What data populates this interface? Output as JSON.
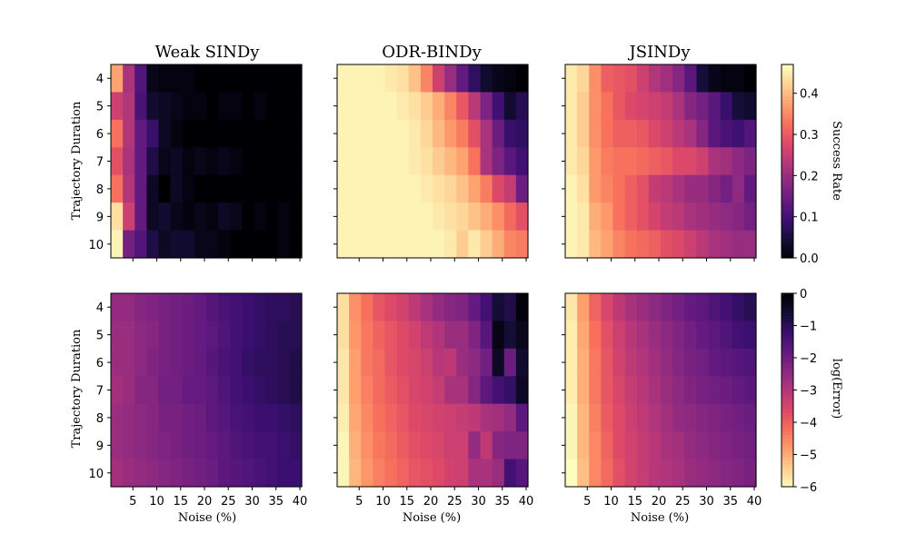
{
  "chart_data": {
    "type": "heatmap",
    "x_ticks": [
      5,
      10,
      15,
      20,
      25,
      30,
      35,
      40
    ],
    "y_ticks": [
      4,
      5,
      6,
      7,
      8,
      9,
      10
    ],
    "xlabel": "Noise (%)",
    "ylabel": "Trajectory Duration",
    "panel_titles": [
      "Weak SINDy",
      "ODR-BINDy",
      "JSINDy"
    ],
    "colorbars": [
      {
        "label": "Success Rate",
        "range": [
          0,
          0.47
        ],
        "ticks": [
          "0.0",
          "0.1",
          "0.2",
          "0.3",
          "0.4"
        ],
        "tick_values": [
          0,
          0.1,
          0.2,
          0.3,
          0.4
        ],
        "colormap": "magma"
      },
      {
        "label": "log(Error)",
        "range": [
          -6,
          0
        ],
        "ticks": [
          "−6",
          "−5",
          "−4",
          "−3",
          "−2",
          "−1",
          "0"
        ],
        "tick_values": [
          -6,
          -5,
          -4,
          -3,
          -2,
          -1,
          0
        ],
        "colormap": "magma_r"
      }
    ],
    "panels": [
      {
        "method": "Weak SINDy",
        "metric": "Success Rate",
        "values": [
          [
            0.38,
            0.22,
            0.12,
            0.02,
            0.01,
            0.01,
            0.01,
            0.0,
            0.0,
            0.0,
            0.0,
            0.0,
            0.0,
            0.0,
            0.0,
            0.0
          ],
          [
            0.26,
            0.23,
            0.11,
            0.04,
            0.03,
            0.02,
            0.01,
            0.01,
            0.0,
            0.01,
            0.01,
            0.0,
            0.01,
            0.0,
            0.0,
            0.0
          ],
          [
            0.33,
            0.23,
            0.14,
            0.09,
            0.03,
            0.01,
            0.0,
            0.0,
            0.0,
            0.0,
            0.0,
            0.0,
            0.0,
            0.0,
            0.0,
            0.0
          ],
          [
            0.29,
            0.22,
            0.14,
            0.06,
            0.02,
            0.03,
            0.01,
            0.02,
            0.01,
            0.02,
            0.01,
            0.0,
            0.0,
            0.0,
            0.0,
            0.0
          ],
          [
            0.33,
            0.23,
            0.14,
            0.03,
            0.0,
            0.03,
            0.01,
            0.0,
            0.0,
            0.0,
            0.0,
            0.0,
            0.0,
            0.0,
            0.0,
            0.0
          ],
          [
            0.44,
            0.26,
            0.14,
            0.03,
            0.04,
            0.02,
            0.01,
            0.02,
            0.01,
            0.03,
            0.02,
            0.0,
            0.01,
            0.0,
            0.01,
            0.0
          ],
          [
            0.46,
            0.16,
            0.12,
            0.06,
            0.03,
            0.04,
            0.04,
            0.02,
            0.02,
            0.01,
            0.0,
            0.0,
            0.0,
            0.0,
            0.01,
            0.0
          ]
        ]
      },
      {
        "method": "ODR-BINDy",
        "metric": "Success Rate",
        "values": [
          [
            0.46,
            0.46,
            0.46,
            0.46,
            0.45,
            0.44,
            0.41,
            0.35,
            0.26,
            0.2,
            0.14,
            0.08,
            0.04,
            0.02,
            0.01,
            0.0
          ],
          [
            0.46,
            0.46,
            0.46,
            0.46,
            0.46,
            0.45,
            0.44,
            0.42,
            0.39,
            0.35,
            0.3,
            0.24,
            0.17,
            0.1,
            0.04,
            0.07
          ],
          [
            0.46,
            0.46,
            0.46,
            0.46,
            0.46,
            0.46,
            0.45,
            0.43,
            0.4,
            0.37,
            0.34,
            0.29,
            0.22,
            0.15,
            0.09,
            0.08
          ],
          [
            0.46,
            0.46,
            0.46,
            0.46,
            0.46,
            0.46,
            0.45,
            0.44,
            0.42,
            0.4,
            0.38,
            0.33,
            0.22,
            0.17,
            0.13,
            0.1
          ],
          [
            0.46,
            0.46,
            0.46,
            0.46,
            0.46,
            0.46,
            0.46,
            0.45,
            0.44,
            0.43,
            0.41,
            0.38,
            0.34,
            0.28,
            0.25,
            0.15
          ],
          [
            0.46,
            0.46,
            0.46,
            0.46,
            0.46,
            0.46,
            0.46,
            0.46,
            0.45,
            0.44,
            0.43,
            0.41,
            0.39,
            0.36,
            0.32,
            0.29
          ],
          [
            0.46,
            0.46,
            0.46,
            0.46,
            0.46,
            0.46,
            0.46,
            0.46,
            0.46,
            0.45,
            0.42,
            0.45,
            0.42,
            0.39,
            0.35,
            0.34
          ]
        ]
      },
      {
        "method": "JSINDy",
        "metric": "Success Rate",
        "values": [
          [
            0.45,
            0.43,
            0.36,
            0.31,
            0.3,
            0.29,
            0.26,
            0.23,
            0.21,
            0.18,
            0.13,
            0.05,
            0.02,
            0.01,
            0.01,
            0.0
          ],
          [
            0.45,
            0.42,
            0.36,
            0.33,
            0.3,
            0.28,
            0.27,
            0.26,
            0.25,
            0.22,
            0.18,
            0.16,
            0.13,
            0.09,
            0.05,
            0.04
          ],
          [
            0.45,
            0.42,
            0.36,
            0.33,
            0.31,
            0.31,
            0.3,
            0.28,
            0.26,
            0.24,
            0.22,
            0.18,
            0.13,
            0.11,
            0.1,
            0.12
          ],
          [
            0.45,
            0.43,
            0.37,
            0.34,
            0.33,
            0.33,
            0.32,
            0.31,
            0.3,
            0.28,
            0.28,
            0.26,
            0.22,
            0.21,
            0.19,
            0.17
          ],
          [
            0.46,
            0.44,
            0.37,
            0.35,
            0.33,
            0.31,
            0.29,
            0.25,
            0.24,
            0.22,
            0.2,
            0.2,
            0.18,
            0.16,
            0.19,
            0.14
          ],
          [
            0.46,
            0.45,
            0.39,
            0.37,
            0.33,
            0.31,
            0.29,
            0.27,
            0.25,
            0.24,
            0.22,
            0.21,
            0.2,
            0.19,
            0.18,
            0.16
          ],
          [
            0.46,
            0.45,
            0.4,
            0.38,
            0.35,
            0.33,
            0.32,
            0.31,
            0.29,
            0.28,
            0.26,
            0.24,
            0.22,
            0.21,
            0.2,
            0.2
          ]
        ]
      },
      {
        "method": "Weak SINDy",
        "metric": "log(Error)",
        "values": [
          [
            -2.5,
            -2.5,
            -2.3,
            -2.2,
            -2.1,
            -2.0,
            -1.9,
            -1.8,
            -1.6,
            -1.4,
            -1.3,
            -1.2,
            -1.1,
            -1.0,
            -1.0,
            -0.9
          ],
          [
            -2.6,
            -2.6,
            -2.4,
            -2.3,
            -2.1,
            -2.0,
            -1.9,
            -1.8,
            -1.7,
            -1.5,
            -1.3,
            -1.2,
            -1.1,
            -1.0,
            -0.9,
            -0.9
          ],
          [
            -2.6,
            -2.6,
            -2.4,
            -2.2,
            -2.1,
            -2.0,
            -1.9,
            -1.8,
            -1.6,
            -1.4,
            -1.3,
            -1.1,
            -1.0,
            -1.0,
            -0.9,
            -0.8
          ],
          [
            -2.7,
            -2.6,
            -2.3,
            -2.3,
            -2.0,
            -2.0,
            -1.8,
            -1.8,
            -1.7,
            -1.5,
            -1.3,
            -1.2,
            -1.1,
            -1.0,
            -0.9,
            -0.8
          ],
          [
            -2.6,
            -2.5,
            -2.4,
            -2.3,
            -2.1,
            -2.1,
            -2.0,
            -1.9,
            -1.7,
            -1.6,
            -1.4,
            -1.3,
            -1.2,
            -1.2,
            -1.1,
            -1.0
          ],
          [
            -2.6,
            -2.5,
            -2.4,
            -2.3,
            -2.2,
            -2.1,
            -2.0,
            -1.9,
            -1.8,
            -1.7,
            -1.5,
            -1.4,
            -1.3,
            -1.3,
            -1.2,
            -1.1
          ],
          [
            -2.7,
            -2.6,
            -2.5,
            -2.4,
            -2.3,
            -2.2,
            -2.1,
            -2.0,
            -1.9,
            -1.7,
            -1.6,
            -1.5,
            -1.4,
            -1.3,
            -1.2,
            -1.2
          ]
        ]
      },
      {
        "method": "ODR-BINDy",
        "metric": "log(Error)",
        "values": [
          [
            -5.6,
            -4.6,
            -4.2,
            -3.8,
            -3.6,
            -3.4,
            -3.1,
            -2.8,
            -2.5,
            -2.3,
            -2.2,
            -1.8,
            -1.3,
            -0.6,
            -0.8,
            -0.1
          ],
          [
            -5.6,
            -4.7,
            -4.3,
            -4.0,
            -3.8,
            -3.6,
            -3.4,
            -3.1,
            -2.9,
            -2.6,
            -2.6,
            -2.2,
            -1.6,
            -0.2,
            -0.6,
            -0.3
          ],
          [
            -5.7,
            -4.8,
            -4.3,
            -4.1,
            -3.8,
            -3.6,
            -3.5,
            -3.3,
            -3.0,
            -3.1,
            -2.6,
            -2.4,
            -2.0,
            -0.4,
            -1.9,
            -0.5
          ],
          [
            -5.7,
            -4.8,
            -4.4,
            -4.1,
            -3.9,
            -3.7,
            -3.5,
            -3.4,
            -3.2,
            -2.8,
            -2.8,
            -2.3,
            -1.7,
            -1.3,
            -1.1,
            -0.4
          ],
          [
            -5.8,
            -4.9,
            -4.5,
            -4.2,
            -4.0,
            -3.8,
            -3.6,
            -3.5,
            -3.4,
            -3.3,
            -3.2,
            -3.1,
            -2.8,
            -2.7,
            -2.5,
            -1.7
          ],
          [
            -5.9,
            -5.0,
            -4.6,
            -4.3,
            -4.1,
            -3.9,
            -3.7,
            -3.6,
            -3.5,
            -3.3,
            -3.3,
            -2.5,
            -3.1,
            -2.3,
            -2.2,
            -2.2
          ],
          [
            -5.9,
            -5.1,
            -4.7,
            -4.4,
            -4.2,
            -4.0,
            -3.8,
            -3.7,
            -3.6,
            -3.4,
            -3.3,
            -2.8,
            -2.8,
            -2.6,
            -1.3,
            -1.6
          ]
        ]
      },
      {
        "method": "JSINDy",
        "metric": "log(Error)",
        "values": [
          [
            -5.7,
            -4.8,
            -4.0,
            -3.5,
            -3.1,
            -2.8,
            -2.6,
            -2.4,
            -2.2,
            -2.0,
            -1.8,
            -1.7,
            -1.5,
            -1.3,
            -1.1,
            -0.9
          ],
          [
            -5.8,
            -4.9,
            -4.2,
            -3.7,
            -3.3,
            -3.0,
            -2.8,
            -2.6,
            -2.4,
            -2.2,
            -2.0,
            -1.8,
            -1.7,
            -1.5,
            -1.3,
            -1.2
          ],
          [
            -5.8,
            -5.0,
            -4.3,
            -3.8,
            -3.4,
            -3.1,
            -2.9,
            -2.7,
            -2.5,
            -2.3,
            -2.1,
            -2.0,
            -1.8,
            -1.7,
            -1.6,
            -1.5
          ],
          [
            -5.8,
            -5.0,
            -4.3,
            -3.8,
            -3.5,
            -3.2,
            -3.0,
            -2.8,
            -2.6,
            -2.4,
            -2.2,
            -2.1,
            -2.0,
            -1.9,
            -1.8,
            -1.7
          ],
          [
            -5.9,
            -5.1,
            -4.4,
            -3.9,
            -3.6,
            -3.3,
            -3.1,
            -2.9,
            -2.7,
            -2.5,
            -2.4,
            -2.3,
            -2.2,
            -2.1,
            -2.0,
            -1.9
          ],
          [
            -5.9,
            -5.1,
            -4.5,
            -4.0,
            -3.6,
            -3.4,
            -3.2,
            -3.0,
            -2.8,
            -2.7,
            -2.5,
            -2.4,
            -2.3,
            -2.2,
            -2.1,
            -2.0
          ],
          [
            -6.0,
            -5.2,
            -4.5,
            -4.1,
            -3.7,
            -3.4,
            -3.2,
            -3.0,
            -2.9,
            -2.8,
            -2.6,
            -2.5,
            -2.4,
            -2.3,
            -2.2,
            -2.1
          ]
        ]
      }
    ]
  }
}
